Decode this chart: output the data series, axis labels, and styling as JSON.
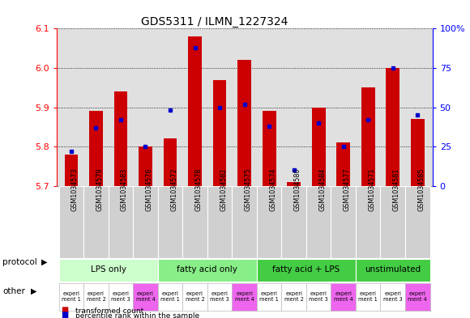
{
  "title": "GDS5311 / ILMN_1227324",
  "samples": [
    "GSM1034573",
    "GSM1034579",
    "GSM1034583",
    "GSM1034576",
    "GSM1034572",
    "GSM1034578",
    "GSM1034582",
    "GSM1034575",
    "GSM1034574",
    "GSM1034580",
    "GSM1034584",
    "GSM1034577",
    "GSM1034571",
    "GSM1034581",
    "GSM1034585"
  ],
  "transformed_count": [
    5.78,
    5.89,
    5.94,
    5.8,
    5.82,
    6.08,
    5.97,
    6.02,
    5.89,
    5.71,
    5.9,
    5.81,
    5.95,
    6.0,
    5.87
  ],
  "percentile_rank": [
    22,
    37,
    42,
    25,
    48,
    88,
    50,
    52,
    38,
    10,
    40,
    25,
    42,
    75,
    45
  ],
  "ylim_left": [
    5.7,
    6.1
  ],
  "ylim_right": [
    0,
    100
  ],
  "yticks_left": [
    5.7,
    5.8,
    5.9,
    6.0,
    6.1
  ],
  "yticks_right": [
    0,
    25,
    50,
    75,
    100
  ],
  "bar_color": "#cc0000",
  "dot_color": "#0000cc",
  "plot_bg": "#e0e0e0",
  "label_bg": "#d0d0d0",
  "bar_baseline": 5.7,
  "protocol_groups": [
    {
      "label": "LPS only",
      "start": 0,
      "end": 4,
      "color": "#ccffcc"
    },
    {
      "label": "fatty acid only",
      "start": 4,
      "end": 8,
      "color": "#88ee88"
    },
    {
      "label": "fatty acid + LPS",
      "start": 8,
      "end": 12,
      "color": "#44cc44"
    },
    {
      "label": "unstimulated",
      "start": 12,
      "end": 15,
      "color": "#44cc44"
    }
  ],
  "other_labels": [
    "experi\nment 1",
    "experi\nment 2",
    "experi\nment 3",
    "experi\nment 4",
    "experi\nment 1",
    "experi\nment 2",
    "experi\nment 3",
    "experi\nment 4",
    "experi\nment 1",
    "experi\nment 2",
    "experi\nment 3",
    "experi\nment 4",
    "experi\nment 1",
    "experi\nment 3",
    "experi\nment 4"
  ],
  "other_colors": [
    "#ffffff",
    "#ffffff",
    "#ffffff",
    "#ee66ee",
    "#ffffff",
    "#ffffff",
    "#ffffff",
    "#ee66ee",
    "#ffffff",
    "#ffffff",
    "#ffffff",
    "#ee66ee",
    "#ffffff",
    "#ffffff",
    "#ee66ee"
  ]
}
